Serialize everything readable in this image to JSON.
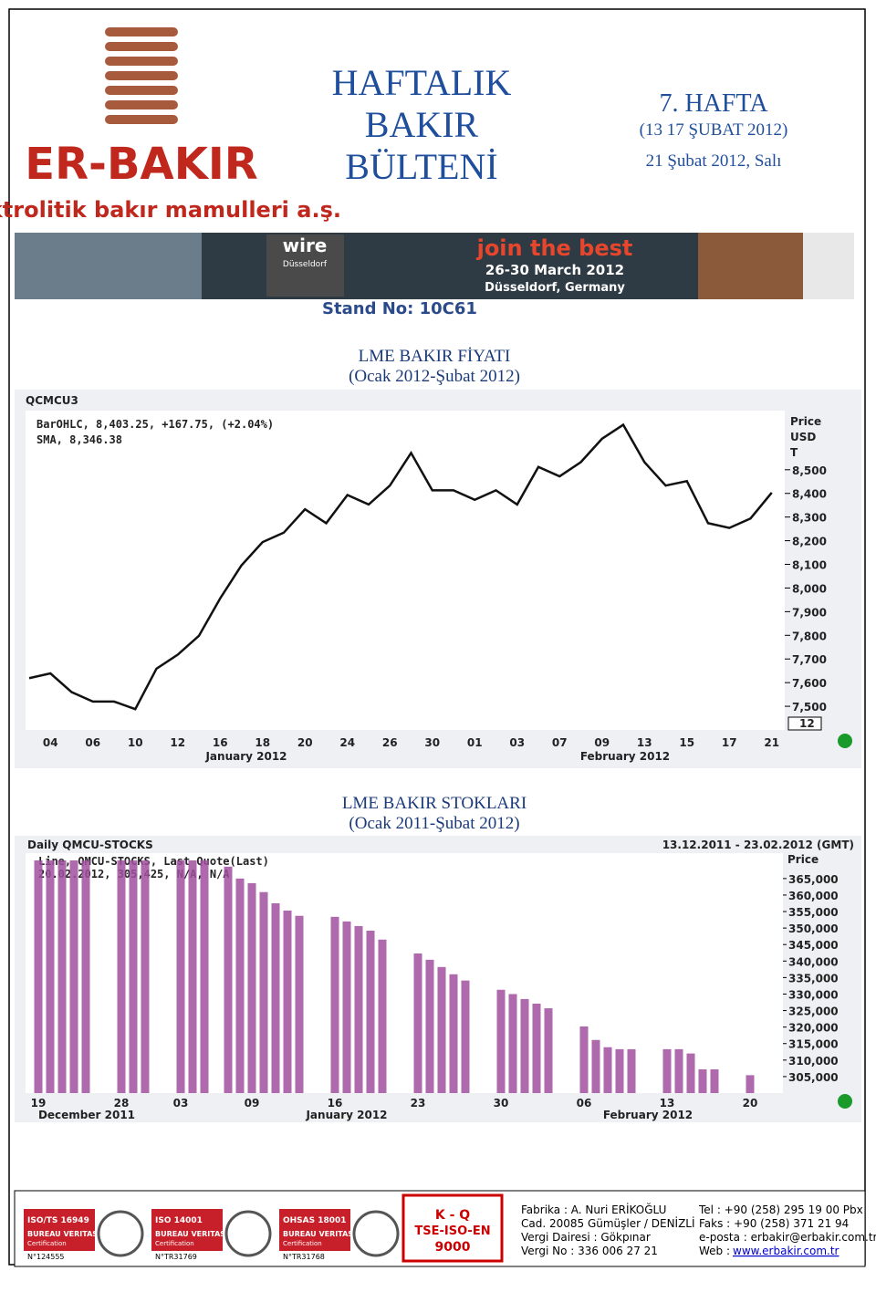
{
  "header": {
    "logo_name": "ER-BAKIR",
    "logo_tagline": "elektrolitik bakır mamulleri a.ş.",
    "title_lines": [
      "HAFTALIK",
      "BAKIR",
      "BÜLTENİ"
    ],
    "week": "7. HAFTA",
    "week_range": "(13  17 ŞUBAT 2012)",
    "date": "21 Şubat 2012, Salı"
  },
  "banner": {
    "brand": "wire",
    "city": "Düsseldorf",
    "slogan": "join the best",
    "dates": "26-30 March 2012",
    "place": "Düsseldorf, Germany",
    "stand": "Stand No: 10C61"
  },
  "price_chart": {
    "type": "line",
    "heading": [
      "LME BAKIR FİYATI",
      "(Ocak 2012-Şubat 2012)"
    ],
    "symbol": "QCMCU3",
    "legend": [
      "BarOHLC, 8,403.25, +167.75, (+2.04%)",
      "SMA, 8,346.38"
    ],
    "axis_title": [
      "Price",
      "USD",
      "T"
    ],
    "date_marker": "12",
    "categories": [
      null,
      "04",
      null,
      "06",
      null,
      "10",
      null,
      "12",
      null,
      "16",
      null,
      "18",
      null,
      "20",
      null,
      "24",
      null,
      "26",
      null,
      "30",
      null,
      "01",
      null,
      "03",
      null,
      "07",
      null,
      "09",
      null,
      "13",
      null,
      "15",
      null,
      "17",
      null,
      "21"
    ],
    "months": [
      "January 2012",
      "February 2012"
    ],
    "values": [
      7619,
      7639,
      7560,
      7520,
      7520,
      7488,
      7659,
      7718,
      7798,
      7956,
      8095,
      8194,
      8234,
      8333,
      8274,
      8393,
      8353,
      8433,
      8571,
      8413,
      8413,
      8373,
      8413,
      8353,
      8512,
      8472,
      8532,
      8631,
      8690,
      8532,
      8433,
      8452,
      8274,
      8254,
      8294,
      8403.25
    ],
    "color": "#111111",
    "ylim": [
      7400,
      8750
    ],
    "yticks": [
      {
        "value": 7500,
        "label": "7,500"
      },
      {
        "value": 7600,
        "label": "7,600"
      },
      {
        "value": 7700,
        "label": "7,700"
      },
      {
        "value": 7800,
        "label": "7,800"
      },
      {
        "value": 7900,
        "label": "7,900"
      },
      {
        "value": 8000,
        "label": "8,000"
      },
      {
        "value": 8100,
        "label": "8,100"
      },
      {
        "value": 8200,
        "label": "8,200"
      },
      {
        "value": 8300,
        "label": "8,300"
      },
      {
        "value": 8400,
        "label": "8,400"
      },
      {
        "value": 8500,
        "label": "8,500"
      }
    ]
  },
  "stocks_chart": {
    "type": "bar",
    "heading": [
      "LME BAKIR STOKLARI",
      "(Ocak 2011-Şubat 2012)"
    ],
    "title": "Daily QMCU-STOCKS",
    "range": "13.12.2011 - 23.02.2012 (GMT)",
    "legend": [
      "Line, QMCU-STOCKS, Last Quote(Last)",
      "20.02.2012, 305,425, N/A, N/A"
    ],
    "axis_title": "Price",
    "categories": [
      "19",
      null,
      null,
      null,
      null,
      null,
      null,
      "28",
      null,
      null,
      null,
      null,
      "03",
      null,
      null,
      null,
      null,
      null,
      "09",
      null,
      null,
      null,
      null,
      null,
      null,
      "16",
      null,
      null,
      null,
      null,
      null,
      null,
      "23",
      null,
      null,
      null,
      null,
      null,
      null,
      "30",
      null,
      null,
      null,
      null,
      null,
      null,
      "06",
      null,
      null,
      null,
      null,
      null,
      null,
      "13",
      null,
      null,
      null,
      null,
      null,
      null,
      "20"
    ],
    "months": [
      "December 2011",
      "January 2012",
      "February 2012"
    ],
    "values": [
      370500,
      370500,
      370500,
      370500,
      370500,
      null,
      null,
      370500,
      370500,
      370500,
      null,
      null,
      370500,
      370500,
      370500,
      null,
      368600,
      365000,
      363600,
      360900,
      357500,
      355300,
      353700,
      null,
      null,
      353400,
      352000,
      350600,
      349200,
      346500,
      null,
      null,
      342300,
      340400,
      338200,
      336000,
      334100,
      null,
      null,
      331300,
      330000,
      328500,
      327100,
      325700,
      null,
      null,
      320200,
      316100,
      313900,
      313300,
      313300,
      null,
      null,
      313300,
      313300,
      312000,
      307200,
      307200,
      null,
      null,
      305425
    ],
    "color": "#a0509f",
    "ylim": [
      300000,
      372700
    ],
    "yticks": [
      {
        "value": 305000,
        "label": "305,000"
      },
      {
        "value": 310000,
        "label": "310,000"
      },
      {
        "value": 315000,
        "label": "315,000"
      },
      {
        "value": 320000,
        "label": "320,000"
      },
      {
        "value": 325000,
        "label": "325,000"
      },
      {
        "value": 330000,
        "label": "330,000"
      },
      {
        "value": 335000,
        "label": "335,000"
      },
      {
        "value": 340000,
        "label": "340,000"
      },
      {
        "value": 345000,
        "label": "345,000"
      },
      {
        "value": 350000,
        "label": "350,000"
      },
      {
        "value": 355000,
        "label": "355,000"
      },
      {
        "value": 360000,
        "label": "360,000"
      },
      {
        "value": 365000,
        "label": "365,000"
      }
    ]
  },
  "footer": {
    "certs": [
      {
        "name": "ISO/TS 16949",
        "body": "BUREAU VERITAS",
        "kind": "Certification",
        "no": "N°124555"
      },
      {
        "name": "ISO 14001",
        "body": "BUREAU VERITAS",
        "kind": "Certification",
        "no": "N°TR31769"
      },
      {
        "name": "OHSAS 18001",
        "body": "BUREAU VERITAS",
        "kind": "Certification",
        "no": "N°TR31768"
      }
    ],
    "tse": [
      "K - Q",
      "TSE-ISO-EN",
      "9000"
    ],
    "address": [
      "Fabrika : A. Nuri ERİKOĞLU",
      "Cad. 20085 Gümüşler / DENİZLİ",
      "Vergi Dairesi : Gökpınar",
      "Vergi No : 336 006 27 21"
    ],
    "contact": [
      "Tel : +90 (258) 295 19 00 Pbx",
      "Faks : +90 (258) 371 21 94",
      "e-posta : erbakir@erbakir.com.tr"
    ],
    "web_label": "Web :",
    "web": "www.erbakir.com.tr"
  }
}
